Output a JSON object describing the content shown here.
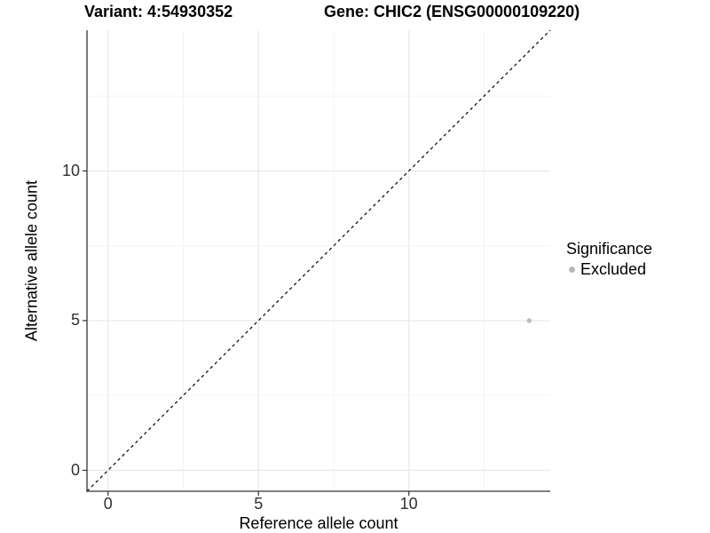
{
  "chart_data": {
    "type": "scatter",
    "title_left": "Variant: 4:54930352",
    "title_right": "Gene: CHIC2 (ENSG00000109220)",
    "xlabel": "Reference allele count",
    "ylabel": "Alternative allele count",
    "xlim": [
      -0.7,
      14.7
    ],
    "ylim": [
      -0.7,
      14.7
    ],
    "xticks": [
      0,
      5,
      10
    ],
    "yticks": [
      0,
      5,
      10
    ],
    "xticks_minor": [
      2.5,
      7.5,
      12.5
    ],
    "yticks_minor": [
      2.5,
      7.5,
      12.5
    ],
    "grid": "major and minor gridlines, white background",
    "points": [
      {
        "x": 14,
        "y": 5,
        "significance": "Excluded"
      }
    ],
    "reference_line": {
      "type": "identity",
      "equation": "y = x",
      "style": "dashed",
      "from": [
        -0.7,
        -0.7
      ],
      "to": [
        14.7,
        14.7
      ],
      "color": "#000000"
    },
    "legend": {
      "title": "Significance",
      "position": "right",
      "entries": [
        {
          "label": "Excluded",
          "color": "#b8b8b8",
          "marker": "point"
        }
      ]
    },
    "colors": {
      "point": "#b8b8b8",
      "grid_major": "#e7e7e7",
      "grid_minor": "#f4f4f4",
      "axis_line": "#333333",
      "tick_mark": "#333333",
      "text": "#000000",
      "tick_text": "#303030",
      "background": "#ffffff"
    }
  }
}
